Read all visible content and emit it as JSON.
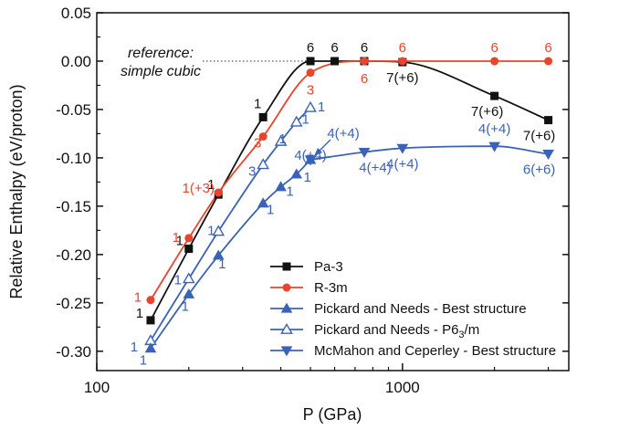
{
  "chart_data": {
    "type": "line",
    "title": "",
    "xlabel": "P (GPa)",
    "ylabel": "Relative Enthalpy (eV/proton)",
    "x_scale": "log",
    "xlim": [
      100,
      3500
    ],
    "ylim": [
      -0.32,
      0.05
    ],
    "x_ticks": [
      {
        "value": 100,
        "label": "100"
      },
      {
        "value": 1000,
        "label": "1000"
      }
    ],
    "y_ticks": [
      {
        "value": 0.05,
        "label": "0.05"
      },
      {
        "value": 0.0,
        "label": "0.00"
      },
      {
        "value": -0.05,
        "label": "-0.05"
      },
      {
        "value": -0.1,
        "label": "-0.10"
      },
      {
        "value": -0.15,
        "label": "-0.15"
      },
      {
        "value": -0.2,
        "label": "-0.20"
      },
      {
        "value": -0.25,
        "label": "-0.25"
      },
      {
        "value": -0.3,
        "label": "-0.30"
      }
    ],
    "grid": false,
    "legend_position": "bottom-right",
    "reference": {
      "value": 0.0,
      "label_lines": [
        "reference:",
        "simple cubic"
      ]
    },
    "series": [
      {
        "name": "Pa-3",
        "color": "#111111",
        "marker": "square-filled",
        "x": [
          150,
          200,
          250,
          350,
          500,
          600,
          750,
          1000,
          2000,
          3000
        ],
        "y": [
          -0.268,
          -0.194,
          -0.138,
          -0.058,
          0.0,
          0.0,
          0.0,
          -0.001,
          -0.036,
          -0.061
        ],
        "labels": [
          "1",
          "1",
          "1",
          "1",
          "6",
          "6",
          "6",
          "7(+6)",
          "7(+6)",
          "7(+6)"
        ]
      },
      {
        "name": "R-3m",
        "color": "#e8452c",
        "marker": "circle-filled",
        "x": [
          150,
          200,
          250,
          350,
          500,
          750,
          1000,
          2000,
          3000
        ],
        "y": [
          -0.247,
          -0.183,
          -0.136,
          -0.078,
          -0.012,
          0.0,
          0.0,
          0.0,
          0.0
        ],
        "labels": [
          "1",
          "1",
          "1(+3)",
          "3",
          "3",
          "6",
          "6",
          "6",
          "6"
        ]
      },
      {
        "name": "Pickard and Needs - Best structure",
        "color": "#3a63b8",
        "marker": "triangle-up-filled",
        "x": [
          150,
          200,
          250,
          350,
          400,
          450,
          500
        ],
        "y": [
          -0.297,
          -0.241,
          -0.201,
          -0.147,
          -0.13,
          -0.117,
          -0.102
        ],
        "labels": [
          "1",
          "1",
          "1",
          "1",
          "1",
          "1",
          ""
        ]
      },
      {
        "name": "Pickard and Needs - P6",
        "name_subscript": "3",
        "name_suffix": "/m",
        "color": "#3a63b8",
        "marker": "triangle-up-open",
        "x": [
          150,
          200,
          250,
          350,
          400,
          450,
          500
        ],
        "y": [
          -0.289,
          -0.225,
          -0.176,
          -0.107,
          -0.083,
          -0.063,
          -0.048
        ],
        "labels": [
          "1",
          "1",
          "1",
          "3",
          "1",
          "1",
          "1"
        ]
      },
      {
        "name": "McMahon and Ceperley - Best structure",
        "color": "#3a63b8",
        "marker": "triangle-down-filled",
        "x": [
          500,
          750,
          1000,
          2000,
          3000
        ],
        "y": [
          -0.102,
          -0.094,
          -0.09,
          -0.088,
          -0.096
        ],
        "labels": [
          "4(+4)",
          "4(+4)",
          "4(+4)",
          "4(+4)",
          "6(+6)"
        ]
      }
    ]
  }
}
